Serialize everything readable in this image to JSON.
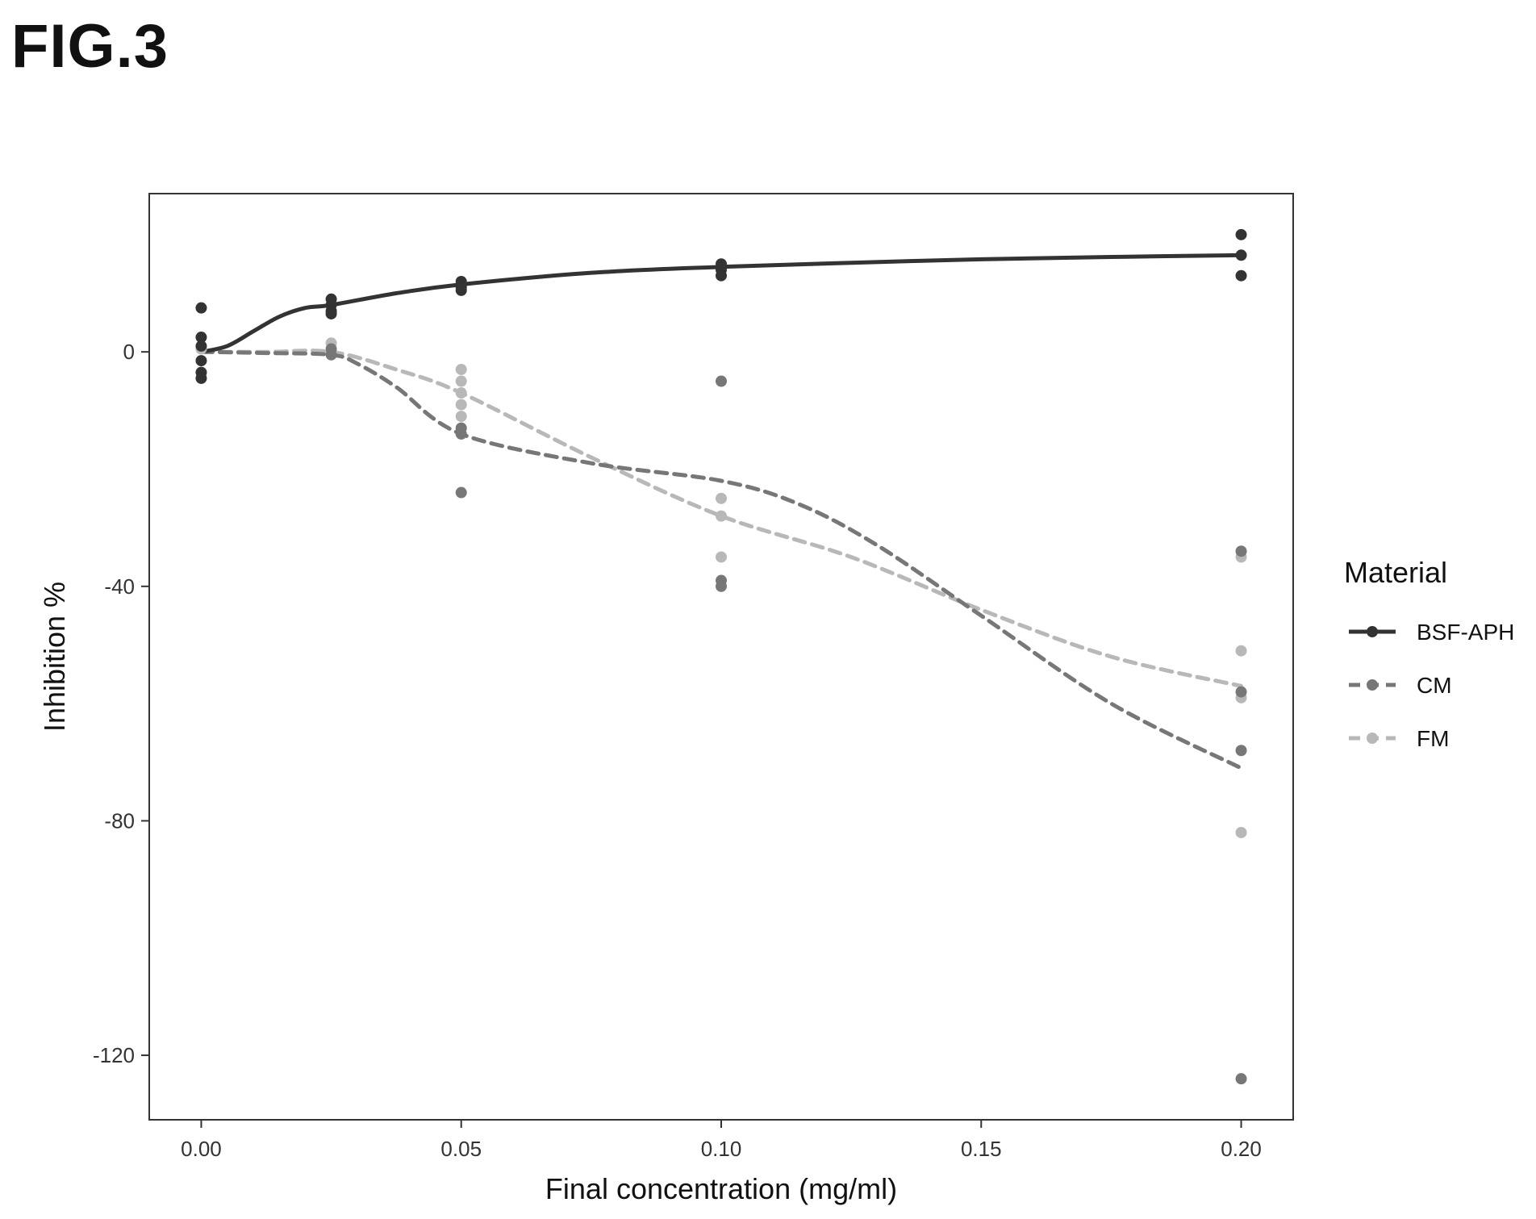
{
  "figure": {
    "label": "FIG.3"
  },
  "chart_data": {
    "type": "scatter",
    "xlabel": "Final concentration (mg/ml)",
    "ylabel": "Inhibition %",
    "xlim": [
      -0.01,
      0.21
    ],
    "ylim": [
      -131,
      27
    ],
    "x_ticks": [
      {
        "value": 0.0,
        "label": "0.00"
      },
      {
        "value": 0.05,
        "label": "0.05"
      },
      {
        "value": 0.1,
        "label": "0.10"
      },
      {
        "value": 0.15,
        "label": "0.15"
      },
      {
        "value": 0.2,
        "label": "0.20"
      }
    ],
    "y_ticks": [
      {
        "value": 0,
        "label": "0"
      },
      {
        "value": -40,
        "label": "-40"
      },
      {
        "value": -80,
        "label": "-80"
      },
      {
        "value": -120,
        "label": "-120"
      }
    ],
    "grid": false,
    "legend": {
      "title": "Material",
      "position": "right"
    },
    "series": [
      {
        "name": "BSF-APH",
        "color": "#333333",
        "line_style": "solid",
        "points": [
          [
            0,
            7.5
          ],
          [
            0,
            2.5
          ],
          [
            0,
            1
          ],
          [
            0,
            -1.5
          ],
          [
            0,
            -3.5
          ],
          [
            0,
            -4.5
          ],
          [
            0.025,
            9
          ],
          [
            0.025,
            8
          ],
          [
            0.025,
            7
          ],
          [
            0.025,
            6.5
          ],
          [
            0.05,
            12
          ],
          [
            0.05,
            11
          ],
          [
            0.05,
            10.5
          ],
          [
            0.1,
            15
          ],
          [
            0.1,
            14
          ],
          [
            0.1,
            13
          ],
          [
            0.2,
            20
          ],
          [
            0.2,
            16.5
          ],
          [
            0.2,
            13
          ]
        ],
        "trend": [
          [
            0,
            0
          ],
          [
            0.005,
            1
          ],
          [
            0.01,
            3.5
          ],
          [
            0.015,
            6
          ],
          [
            0.02,
            7.5
          ],
          [
            0.025,
            8
          ],
          [
            0.0375,
            10
          ],
          [
            0.05,
            11.5
          ],
          [
            0.075,
            13.5
          ],
          [
            0.1,
            14.5
          ],
          [
            0.125,
            15.2
          ],
          [
            0.15,
            15.8
          ],
          [
            0.175,
            16.2
          ],
          [
            0.2,
            16.5
          ]
        ]
      },
      {
        "name": "CM",
        "color": "#777777",
        "line_style": "dashed",
        "points": [
          [
            0.025,
            0.5
          ],
          [
            0.025,
            -0.5
          ],
          [
            0.05,
            -13
          ],
          [
            0.05,
            -14
          ],
          [
            0.05,
            -24
          ],
          [
            0.1,
            -5
          ],
          [
            0.1,
            -39
          ],
          [
            0.1,
            -40
          ],
          [
            0.2,
            -34
          ],
          [
            0.2,
            -58
          ],
          [
            0.2,
            -68
          ],
          [
            0.2,
            -124
          ]
        ],
        "trend": [
          [
            0,
            0
          ],
          [
            0.0125,
            -0.2
          ],
          [
            0.025,
            -0.5
          ],
          [
            0.03,
            -2
          ],
          [
            0.0375,
            -6
          ],
          [
            0.05,
            -14
          ],
          [
            0.075,
            -19
          ],
          [
            0.1,
            -22
          ],
          [
            0.115,
            -26
          ],
          [
            0.13,
            -33
          ],
          [
            0.15,
            -45
          ],
          [
            0.175,
            -60
          ],
          [
            0.2,
            -71
          ]
        ]
      },
      {
        "name": "FM",
        "color": "#b8b8b8",
        "line_style": "dashed",
        "points": [
          [
            0,
            0.5
          ],
          [
            0.025,
            1.5
          ],
          [
            0.025,
            0
          ],
          [
            0.05,
            -3
          ],
          [
            0.05,
            -5
          ],
          [
            0.05,
            -7
          ],
          [
            0.05,
            -9
          ],
          [
            0.05,
            -11
          ],
          [
            0.1,
            -25
          ],
          [
            0.1,
            -28
          ],
          [
            0.1,
            -35
          ],
          [
            0.2,
            -35
          ],
          [
            0.2,
            -51
          ],
          [
            0.2,
            -59
          ],
          [
            0.2,
            -82
          ]
        ],
        "trend": [
          [
            0,
            0
          ],
          [
            0.0125,
            0
          ],
          [
            0.025,
            0
          ],
          [
            0.0375,
            -3
          ],
          [
            0.05,
            -7
          ],
          [
            0.075,
            -18
          ],
          [
            0.1,
            -28
          ],
          [
            0.125,
            -35
          ],
          [
            0.15,
            -44
          ],
          [
            0.175,
            -52
          ],
          [
            0.2,
            -57
          ]
        ]
      }
    ]
  }
}
